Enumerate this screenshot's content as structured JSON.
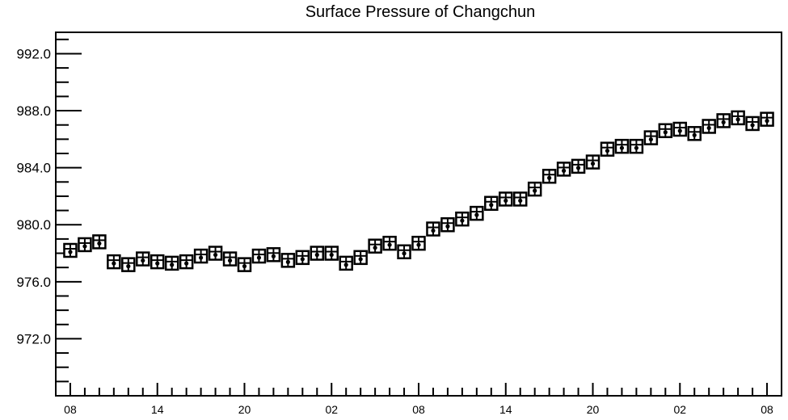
{
  "chart_data": {
    "type": "scatter",
    "title": "Surface Pressure of Changchun",
    "xlabel": "",
    "ylabel": "",
    "ylim": [
      968.0,
      993.5
    ],
    "y_tick_labels": [
      "992.0",
      "988.0",
      "984.0",
      "980.0",
      "976.0",
      "972.0"
    ],
    "y_tick_values": [
      992.0,
      988.0,
      984.0,
      980.0,
      976.0,
      972.0
    ],
    "x_tick_labels": [
      "08",
      "14",
      "20",
      "02",
      "08",
      "14",
      "20",
      "02",
      "08"
    ],
    "x_tick_hours": [
      0,
      6,
      12,
      18,
      24,
      30,
      36,
      42,
      48
    ],
    "xlim_hours": [
      -1,
      49
    ],
    "x_hours": [
      0,
      1,
      2,
      3,
      4,
      5,
      6,
      7,
      8,
      9,
      10,
      11,
      12,
      13,
      14,
      15,
      16,
      17,
      18,
      19,
      20,
      21,
      22,
      23,
      24,
      25,
      26,
      27,
      28,
      29,
      30,
      31,
      32,
      33,
      34,
      35,
      36,
      37,
      38,
      39,
      40,
      41,
      42,
      43,
      44,
      45,
      46,
      47,
      48
    ],
    "series": [
      {
        "marker": "station-model-box",
        "values": [
          978.2,
          978.6,
          978.8,
          977.4,
          977.2,
          977.6,
          977.4,
          977.3,
          977.4,
          977.8,
          978.0,
          977.6,
          977.2,
          977.8,
          977.9,
          977.5,
          977.7,
          978.0,
          978.0,
          977.3,
          977.7,
          978.5,
          978.7,
          978.1,
          978.7,
          979.7,
          980.0,
          980.4,
          980.8,
          981.5,
          981.8,
          981.8,
          982.5,
          983.4,
          983.9,
          984.1,
          984.4,
          985.3,
          985.5,
          985.5,
          986.1,
          986.6,
          986.7,
          986.4,
          986.9,
          987.3,
          987.5,
          987.1,
          987.4
        ]
      }
    ],
    "grid": false,
    "legend": "none"
  }
}
